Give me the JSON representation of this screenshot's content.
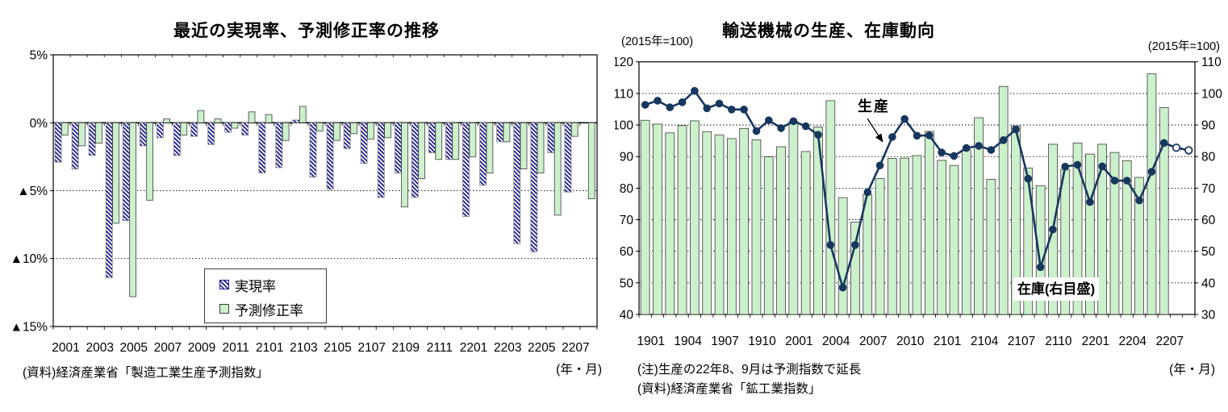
{
  "chart_data": [
    {
      "type": "bar",
      "title": "最近の実現率、予測修正率の推移",
      "footer_left": "(資料)経済産業省「製造工業生産予測指数」",
      "footer_right": "(年・月)",
      "ylim": [
        -15,
        5
      ],
      "yticks": [
        {
          "v": 5,
          "label": "5%"
        },
        {
          "v": 0,
          "label": "0%"
        },
        {
          "v": -5,
          "label": "▲5%"
        },
        {
          "v": -10,
          "label": "▲10%"
        },
        {
          "v": -15,
          "label": "▲15%"
        }
      ],
      "grid_at": [
        -5,
        -10
      ],
      "xtick_every": 2,
      "categories": [
        "2001",
        "2002",
        "2003",
        "2004",
        "2005",
        "2006",
        "2007",
        "2008",
        "2009",
        "2010",
        "2011",
        "2012",
        "2101",
        "2102",
        "2103",
        "2104",
        "2105",
        "2106",
        "2107",
        "2108",
        "2109",
        "2110",
        "2111",
        "2112",
        "2201",
        "2202",
        "2203",
        "2204",
        "2205",
        "2206",
        "2207",
        "2208"
      ],
      "series": [
        {
          "name": "実現率",
          "style": "hatched",
          "values": [
            -2.9,
            -3.4,
            -2.4,
            -11.4,
            -7.2,
            -1.7,
            -1.1,
            -2.4,
            -1.0,
            -1.6,
            -0.7,
            -0.9,
            -3.7,
            -3.3,
            0.2,
            -4.0,
            -4.9,
            -1.9,
            -3.0,
            -5.5,
            -3.7,
            -5.5,
            -2.2,
            -2.7,
            -6.9,
            -4.6,
            -1.4,
            -8.9,
            -9.5,
            -2.2,
            -5.1,
            null
          ]
        },
        {
          "name": "予測修正率",
          "style": "solid",
          "values": [
            -0.9,
            -1.7,
            -1.5,
            -7.4,
            -12.8,
            -5.7,
            0.3,
            -0.9,
            0.9,
            0.3,
            -0.4,
            0.8,
            0.6,
            -1.3,
            1.2,
            -0.6,
            -1.3,
            -0.8,
            -1.2,
            -1.1,
            -6.2,
            -4.1,
            -2.7,
            -2.7,
            -2.5,
            -3.7,
            -1.4,
            -3.4,
            -3.7,
            -6.8,
            -1.0,
            -5.6
          ]
        }
      ],
      "colors": {
        "hatch": "#1a1a8f",
        "green": "#ccf0cc",
        "axis": "#000000"
      }
    },
    {
      "type": "bar+line",
      "title": "輸送機械の生産、在庫動向",
      "left_axis_title": "(2015年=100)",
      "right_axis_title": "(2015年=100)",
      "note1": "(注)生産の22年8、9月は予測指数で延長",
      "note2": "(資料)経済産業省「鉱工業指数」",
      "footer_right": "(年・月)",
      "left_ylim": [
        40,
        120
      ],
      "right_ylim": [
        30,
        110
      ],
      "left_yticks": [
        120,
        110,
        100,
        90,
        80,
        70,
        60,
        50,
        40
      ],
      "right_yticks": [
        110,
        100,
        90,
        80,
        70,
        60,
        50,
        40,
        30
      ],
      "grid_at_left": [
        110,
        100,
        90,
        80,
        70,
        60,
        50
      ],
      "xtick_every": 3,
      "annotations": {
        "line": "生産",
        "bars": "在庫(右目盛)"
      },
      "categories": [
        "1901",
        "1902",
        "1903",
        "1904",
        "1905",
        "1906",
        "1907",
        "1908",
        "1909",
        "1910",
        "1911",
        "1912",
        "2001",
        "2002",
        "2003",
        "2004",
        "2005",
        "2006",
        "2007",
        "2008",
        "2009",
        "2010",
        "2011",
        "2012",
        "2101",
        "2102",
        "2103",
        "2104",
        "2105",
        "2106",
        "2107",
        "2108",
        "2109",
        "2110",
        "2111",
        "2112",
        "2201",
        "2202",
        "2203",
        "2204",
        "2205",
        "2206",
        "2207",
        "2208",
        "2209"
      ],
      "series": [
        {
          "name": "在庫",
          "type": "bar",
          "axis": "right",
          "values": [
            91.5,
            90.3,
            87.5,
            89.8,
            91.3,
            87.9,
            86.9,
            85.7,
            88.9,
            85.3,
            79.9,
            83.1,
            91.1,
            81.6,
            89.4,
            97.7,
            67.0,
            59.2,
            68.0,
            73.0,
            79.4,
            79.5,
            80.3,
            88.0,
            78.8,
            77.2,
            82.1,
            92.3,
            72.8,
            102.2,
            89.7,
            76.4,
            70.8,
            83.9,
            75.9,
            84.3,
            80.8,
            83.9,
            81.3,
            78.7,
            73.4,
            106.2,
            95.5,
            null,
            null
          ]
        },
        {
          "name": "生産",
          "type": "line",
          "axis": "left",
          "forecast_count": 2,
          "values": [
            106.4,
            107.7,
            105.6,
            107.2,
            110.8,
            105.3,
            106.8,
            104.9,
            104.9,
            98.1,
            101.5,
            99.0,
            101.2,
            99.6,
            96.9,
            62.0,
            48.5,
            62.0,
            78.7,
            87.2,
            96.2,
            101.9,
            96.6,
            96.7,
            91.3,
            90.2,
            92.7,
            93.4,
            92.1,
            95.2,
            98.6,
            83.0,
            55.0,
            66.9,
            86.8,
            87.4,
            75.6,
            86.9,
            82.4,
            82.4,
            76.1,
            85.2,
            94.3,
            92.8,
            92.0
          ]
        }
      ],
      "colors": {
        "line": "#17375e",
        "green": "#ccf0cc",
        "axis": "#000000"
      }
    }
  ]
}
